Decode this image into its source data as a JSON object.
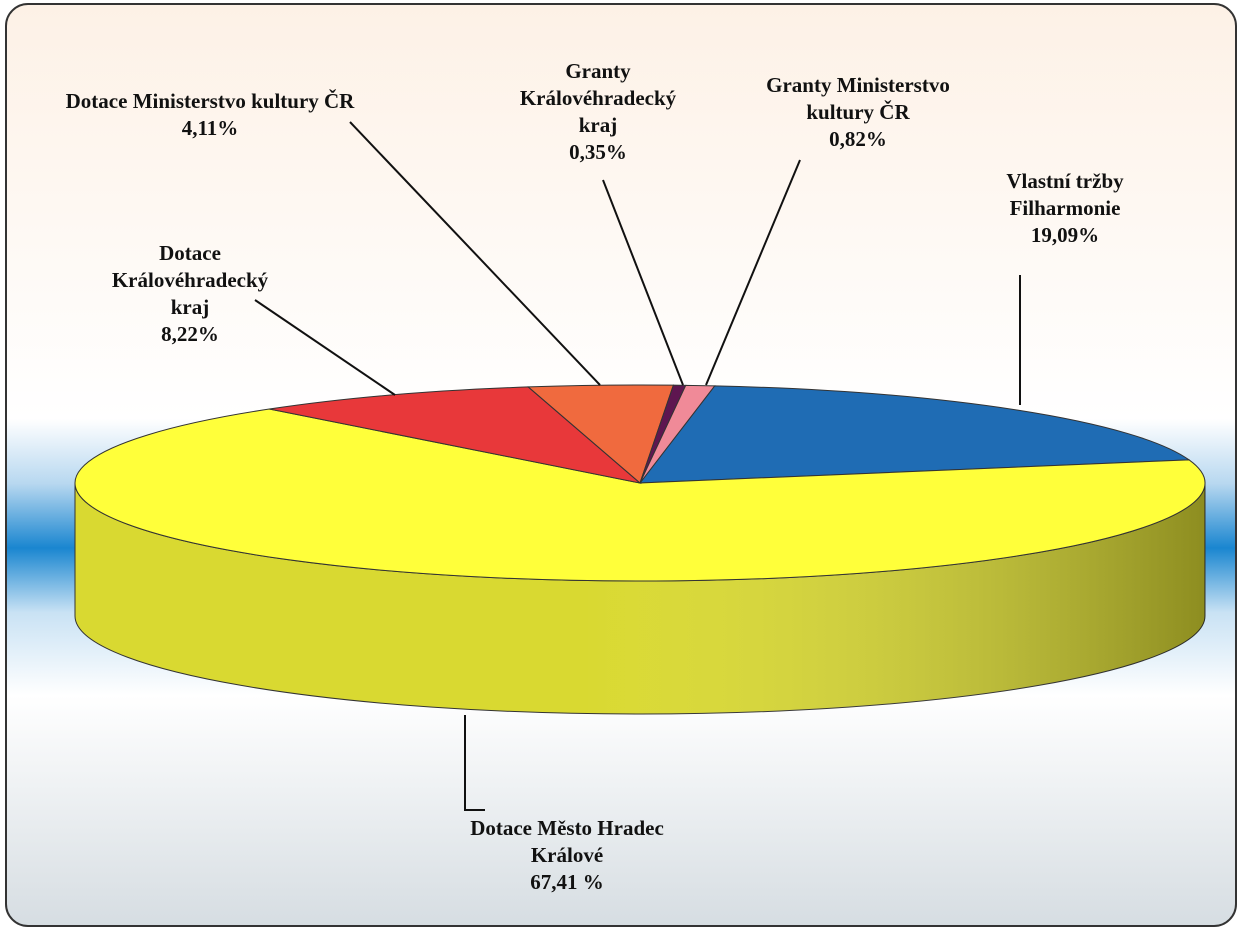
{
  "chart_data": {
    "type": "pie3d",
    "categories": [
      "Vlastní tržby Filharmonie",
      "Dotace Město Hradec Králové",
      "Dotace Královéhradecký kraj",
      "Dotace Ministerstvo kultury ČR",
      "Granty Královéhradecký kraj",
      "Granty Ministerstvo kultury ČR"
    ],
    "values": [
      19.09,
      67.41,
      8.22,
      4.11,
      0.35,
      0.82
    ],
    "value_labels": [
      "19,09%",
      "67,41 %",
      "8,22%",
      "4,11%",
      "0,35%",
      "0,82%"
    ],
    "colors": [
      "#1f6cb4",
      "#ffff3a",
      "#e8383a",
      "#f06a3e",
      "#5e1650",
      "#f08a98"
    ]
  }
}
